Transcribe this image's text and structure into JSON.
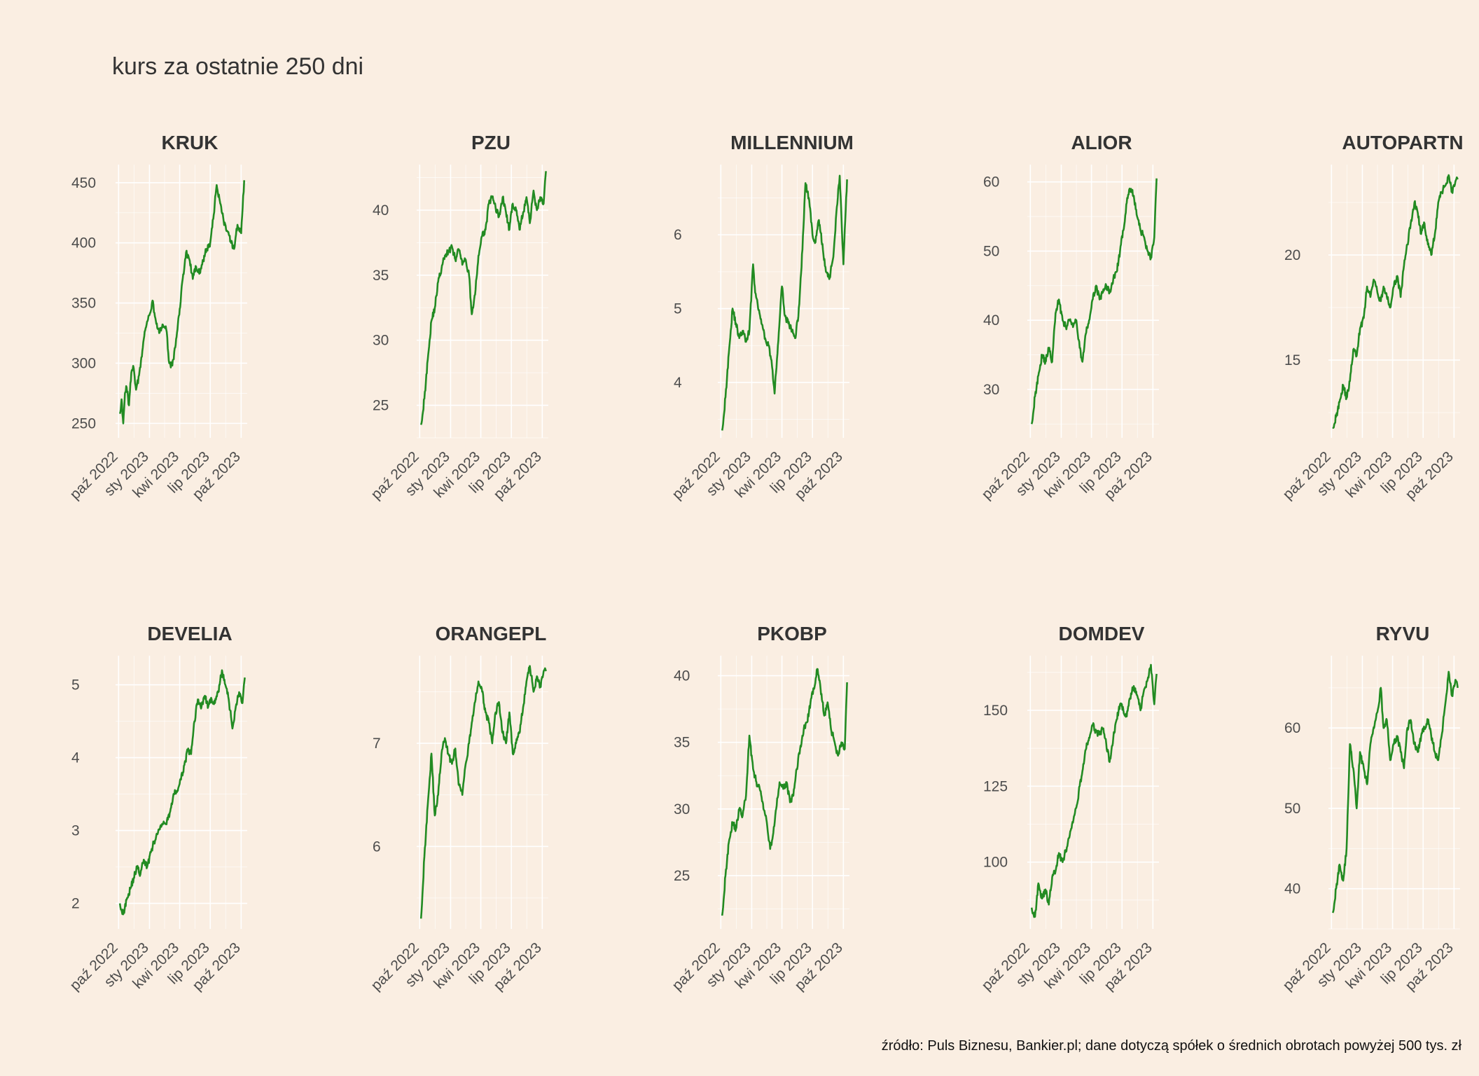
{
  "title": "kurs za ostatnie 250 dni",
  "source": "źródło: Puls Biznesu, Bankier.pl; dane dotyczą spółek o średnich obrotach powyżej 500 tys. zł",
  "colors": {
    "background": "#FAEEE2",
    "line": "#228B22",
    "grid": "#FFFFFF",
    "text": "#333333"
  },
  "chart_data": {
    "type": "line",
    "layout": "small-multiples-2x5",
    "x_tick_labels": [
      "paź 2022",
      "sty 2023",
      "kwi 2023",
      "lip 2023",
      "paź 2023"
    ],
    "x_ticks": [
      "2022-10-01",
      "2023-01-01",
      "2023-04-01",
      "2023-07-01",
      "2023-10-01"
    ],
    "xlim": [
      "2022-09-22",
      "2023-10-19"
    ],
    "grid": true,
    "legend": "none",
    "panels": [
      {
        "name": "KRUK",
        "y_ticks": [
          250,
          300,
          350,
          400,
          450
        ],
        "ylim": [
          238,
          465
        ],
        "series": {
          "dates": [
            "2022-10-05",
            "2022-10-10",
            "2022-10-15",
            "2022-10-20",
            "2022-10-25",
            "2022-11-01",
            "2022-11-08",
            "2022-11-15",
            "2022-11-22",
            "2022-12-01",
            "2022-12-08",
            "2022-12-15",
            "2022-12-22",
            "2023-01-01",
            "2023-01-10",
            "2023-01-20",
            "2023-01-30",
            "2023-02-10",
            "2023-02-20",
            "2023-03-01",
            "2023-03-10",
            "2023-03-20",
            "2023-04-01",
            "2023-04-10",
            "2023-04-20",
            "2023-05-01",
            "2023-05-10",
            "2023-05-20",
            "2023-06-01",
            "2023-06-10",
            "2023-06-20",
            "2023-07-01",
            "2023-07-10",
            "2023-07-20",
            "2023-08-01",
            "2023-08-10",
            "2023-08-20",
            "2023-09-01",
            "2023-09-10",
            "2023-09-20",
            "2023-10-01",
            "2023-10-10"
          ],
          "values": [
            258,
            270,
            250,
            275,
            280,
            265,
            292,
            296,
            278,
            290,
            305,
            320,
            330,
            340,
            352,
            335,
            325,
            332,
            328,
            300,
            298,
            315,
            345,
            370,
            392,
            385,
            370,
            380,
            375,
            385,
            395,
            400,
            420,
            448,
            432,
            418,
            410,
            400,
            395,
            415,
            408,
            452
          ]
        }
      },
      {
        "name": "PZU",
        "y_ticks": [
          25,
          30,
          35,
          40
        ],
        "ylim": [
          22.5,
          43.5
        ],
        "series": {
          "dates": [
            "2022-10-05",
            "2022-10-15",
            "2022-10-25",
            "2022-11-05",
            "2022-11-15",
            "2022-11-25",
            "2022-12-05",
            "2022-12-15",
            "2022-12-25",
            "2023-01-05",
            "2023-01-15",
            "2023-01-25",
            "2023-02-05",
            "2023-02-15",
            "2023-02-25",
            "2023-03-05",
            "2023-03-15",
            "2023-03-25",
            "2023-04-05",
            "2023-04-15",
            "2023-04-25",
            "2023-05-05",
            "2023-05-15",
            "2023-05-25",
            "2023-06-05",
            "2023-06-15",
            "2023-06-25",
            "2023-07-05",
            "2023-07-15",
            "2023-07-25",
            "2023-08-05",
            "2023-08-15",
            "2023-08-25",
            "2023-09-05",
            "2023-09-15",
            "2023-09-25",
            "2023-10-05",
            "2023-10-12"
          ],
          "values": [
            23.5,
            25.5,
            28.5,
            31.5,
            32.5,
            34.5,
            35.5,
            36.5,
            36.8,
            37.2,
            36.2,
            37.0,
            35.8,
            36.2,
            35.0,
            32.0,
            33.5,
            36.5,
            38.0,
            38.5,
            40.5,
            41.0,
            40.2,
            39.5,
            41.0,
            39.8,
            38.5,
            40.5,
            40.0,
            38.5,
            39.8,
            41.0,
            39.0,
            41.5,
            40.0,
            41.0,
            40.5,
            43.0
          ]
        }
      },
      {
        "name": "MILLENNIUM",
        "y_ticks": [
          4,
          5,
          6
        ],
        "ylim": [
          3.25,
          6.95
        ],
        "series": {
          "dates": [
            "2022-10-05",
            "2022-10-15",
            "2022-10-25",
            "2022-11-05",
            "2022-11-15",
            "2022-11-25",
            "2022-12-05",
            "2022-12-15",
            "2022-12-25",
            "2023-01-05",
            "2023-01-10",
            "2023-01-20",
            "2023-01-30",
            "2023-02-10",
            "2023-02-20",
            "2023-03-01",
            "2023-03-10",
            "2023-03-20",
            "2023-04-01",
            "2023-04-10",
            "2023-04-20",
            "2023-05-01",
            "2023-05-10",
            "2023-05-20",
            "2023-06-01",
            "2023-06-10",
            "2023-06-20",
            "2023-07-01",
            "2023-07-10",
            "2023-07-20",
            "2023-08-01",
            "2023-08-10",
            "2023-08-20",
            "2023-09-01",
            "2023-09-10",
            "2023-09-20",
            "2023-10-01",
            "2023-10-12"
          ],
          "values": [
            3.35,
            3.8,
            4.4,
            5.0,
            4.8,
            4.6,
            4.7,
            4.55,
            4.7,
            5.6,
            5.3,
            5.0,
            4.8,
            4.6,
            4.5,
            4.3,
            3.85,
            4.5,
            5.3,
            4.9,
            4.8,
            4.7,
            4.6,
            4.9,
            5.8,
            6.7,
            6.5,
            6.0,
            5.9,
            6.2,
            5.8,
            5.5,
            5.4,
            5.7,
            6.3,
            6.8,
            5.6,
            6.75
          ]
        }
      },
      {
        "name": "ALIOR",
        "y_ticks": [
          30,
          40,
          50,
          60
        ],
        "ylim": [
          23,
          62.5
        ],
        "series": {
          "dates": [
            "2022-10-05",
            "2022-10-15",
            "2022-10-25",
            "2022-11-05",
            "2022-11-15",
            "2022-11-25",
            "2022-12-05",
            "2022-12-15",
            "2022-12-25",
            "2023-01-05",
            "2023-01-15",
            "2023-01-25",
            "2023-02-05",
            "2023-02-15",
            "2023-02-25",
            "2023-03-05",
            "2023-03-15",
            "2023-03-25",
            "2023-04-05",
            "2023-04-15",
            "2023-04-25",
            "2023-05-05",
            "2023-05-15",
            "2023-05-25",
            "2023-06-05",
            "2023-06-15",
            "2023-06-25",
            "2023-07-05",
            "2023-07-15",
            "2023-07-25",
            "2023-08-05",
            "2023-08-15",
            "2023-08-25",
            "2023-09-05",
            "2023-09-15",
            "2023-09-25",
            "2023-10-05",
            "2023-10-12"
          ],
          "values": [
            25,
            29,
            32,
            35,
            34,
            36,
            34,
            41,
            43,
            40,
            39,
            40,
            39,
            40,
            36,
            34,
            38,
            40,
            43,
            45,
            43,
            44,
            45,
            44,
            46,
            47,
            50,
            53,
            57,
            59,
            58,
            55,
            53,
            52,
            50,
            49,
            52,
            60.5
          ]
        }
      },
      {
        "name": "AUTOPARTN",
        "y_ticks": [
          15,
          20
        ],
        "ylim": [
          11.3,
          24.3
        ],
        "series": {
          "dates": [
            "2022-10-05",
            "2022-10-15",
            "2022-10-25",
            "2022-11-05",
            "2022-11-15",
            "2022-11-25",
            "2022-12-05",
            "2022-12-15",
            "2022-12-25",
            "2023-01-05",
            "2023-01-15",
            "2023-01-25",
            "2023-02-05",
            "2023-02-15",
            "2023-02-25",
            "2023-03-05",
            "2023-03-15",
            "2023-03-25",
            "2023-04-05",
            "2023-04-15",
            "2023-04-25",
            "2023-05-05",
            "2023-05-15",
            "2023-05-25",
            "2023-06-05",
            "2023-06-15",
            "2023-06-25",
            "2023-07-05",
            "2023-07-15",
            "2023-07-25",
            "2023-08-05",
            "2023-08-15",
            "2023-08-25",
            "2023-09-05",
            "2023-09-15",
            "2023-09-25",
            "2023-10-05",
            "2023-10-12"
          ],
          "values": [
            11.8,
            12.3,
            13.0,
            13.8,
            13.2,
            14.0,
            15.5,
            15.2,
            16.5,
            17.0,
            18.5,
            18.0,
            18.8,
            18.2,
            17.8,
            18.5,
            18.0,
            17.5,
            18.5,
            19.0,
            18.0,
            19.5,
            20.5,
            21.5,
            22.5,
            22.0,
            21.0,
            21.5,
            20.5,
            20.0,
            21.0,
            22.5,
            23.0,
            23.3,
            23.8,
            23.0,
            23.5,
            23.6
          ]
        }
      },
      {
        "name": "DEVELIA",
        "y_ticks": [
          2,
          3,
          4,
          5
        ],
        "ylim": [
          1.65,
          5.4
        ],
        "series": {
          "dates": [
            "2022-10-05",
            "2022-10-15",
            "2022-10-25",
            "2022-11-05",
            "2022-11-15",
            "2022-11-25",
            "2022-12-05",
            "2022-12-15",
            "2022-12-25",
            "2023-01-05",
            "2023-01-15",
            "2023-01-25",
            "2023-02-05",
            "2023-02-15",
            "2023-02-25",
            "2023-03-05",
            "2023-03-15",
            "2023-03-25",
            "2023-04-05",
            "2023-04-15",
            "2023-04-25",
            "2023-05-05",
            "2023-05-15",
            "2023-05-25",
            "2023-06-05",
            "2023-06-15",
            "2023-06-25",
            "2023-07-05",
            "2023-07-15",
            "2023-07-25",
            "2023-08-05",
            "2023-08-15",
            "2023-08-25",
            "2023-09-05",
            "2023-09-15",
            "2023-09-25",
            "2023-10-05",
            "2023-10-12"
          ],
          "values": [
            2.0,
            1.85,
            2.05,
            2.2,
            2.35,
            2.5,
            2.4,
            2.6,
            2.5,
            2.7,
            2.85,
            2.95,
            3.05,
            3.1,
            3.15,
            3.3,
            3.5,
            3.55,
            3.7,
            3.9,
            4.1,
            4.05,
            4.5,
            4.8,
            4.7,
            4.85,
            4.7,
            4.8,
            4.75,
            4.9,
            5.2,
            5.0,
            4.8,
            4.4,
            4.7,
            4.9,
            4.75,
            5.1
          ]
        }
      },
      {
        "name": "ORANGEPL",
        "y_ticks": [
          6,
          7
        ],
        "ylim": [
          5.2,
          7.85
        ],
        "series": {
          "dates": [
            "2022-10-05",
            "2022-10-15",
            "2022-10-25",
            "2022-11-05",
            "2022-11-15",
            "2022-11-25",
            "2022-12-05",
            "2022-12-15",
            "2022-12-25",
            "2023-01-05",
            "2023-01-15",
            "2023-01-25",
            "2023-02-05",
            "2023-02-15",
            "2023-02-25",
            "2023-03-05",
            "2023-03-15",
            "2023-03-25",
            "2023-04-05",
            "2023-04-15",
            "2023-04-25",
            "2023-05-05",
            "2023-05-15",
            "2023-05-25",
            "2023-06-05",
            "2023-06-15",
            "2023-06-25",
            "2023-07-05",
            "2023-07-15",
            "2023-07-25",
            "2023-08-05",
            "2023-08-15",
            "2023-08-25",
            "2023-09-05",
            "2023-09-15",
            "2023-09-25",
            "2023-10-05",
            "2023-10-12"
          ],
          "values": [
            5.3,
            5.9,
            6.4,
            6.9,
            6.3,
            6.5,
            6.9,
            7.05,
            6.9,
            6.8,
            6.95,
            6.6,
            6.5,
            6.8,
            7.0,
            7.2,
            7.4,
            7.6,
            7.5,
            7.3,
            7.2,
            7.0,
            7.3,
            7.4,
            7.1,
            7.0,
            7.3,
            6.9,
            7.0,
            7.1,
            7.35,
            7.6,
            7.75,
            7.5,
            7.65,
            7.55,
            7.7,
            7.7
          ]
        }
      },
      {
        "name": "PKOBP",
        "y_ticks": [
          25,
          30,
          35,
          40
        ],
        "ylim": [
          21,
          41.5
        ],
        "series": {
          "dates": [
            "2022-10-05",
            "2022-10-15",
            "2022-10-25",
            "2022-11-05",
            "2022-11-15",
            "2022-11-25",
            "2022-12-05",
            "2022-12-15",
            "2022-12-25",
            "2023-01-05",
            "2023-01-15",
            "2023-01-25",
            "2023-02-05",
            "2023-02-15",
            "2023-02-25",
            "2023-03-05",
            "2023-03-15",
            "2023-03-25",
            "2023-04-05",
            "2023-04-15",
            "2023-04-25",
            "2023-05-05",
            "2023-05-15",
            "2023-05-25",
            "2023-06-05",
            "2023-06-15",
            "2023-06-25",
            "2023-07-05",
            "2023-07-15",
            "2023-07-25",
            "2023-08-05",
            "2023-08-15",
            "2023-08-25",
            "2023-09-05",
            "2023-09-15",
            "2023-09-25",
            "2023-10-05",
            "2023-10-12"
          ],
          "values": [
            22,
            25,
            27.5,
            29,
            28.5,
            30,
            29.5,
            31,
            35.5,
            33,
            32,
            31.5,
            30,
            29,
            27,
            28,
            30,
            32,
            31.5,
            32,
            30.5,
            31,
            33,
            34.5,
            36,
            36.5,
            38,
            39,
            40.5,
            39,
            37,
            38,
            36,
            35,
            34,
            35,
            34.5,
            39.5
          ]
        }
      },
      {
        "name": "DOMDEV",
        "y_ticks": [
          100,
          125,
          150
        ],
        "ylim": [
          78,
          168
        ],
        "series": {
          "dates": [
            "2022-10-05",
            "2022-10-15",
            "2022-10-25",
            "2022-11-05",
            "2022-11-15",
            "2022-11-25",
            "2022-12-05",
            "2022-12-15",
            "2022-12-25",
            "2023-01-05",
            "2023-01-15",
            "2023-01-25",
            "2023-02-05",
            "2023-02-15",
            "2023-02-25",
            "2023-03-05",
            "2023-03-15",
            "2023-03-25",
            "2023-04-05",
            "2023-04-15",
            "2023-04-25",
            "2023-05-05",
            "2023-05-15",
            "2023-05-25",
            "2023-06-05",
            "2023-06-15",
            "2023-06-25",
            "2023-07-05",
            "2023-07-15",
            "2023-07-25",
            "2023-08-05",
            "2023-08-15",
            "2023-08-25",
            "2023-09-05",
            "2023-09-15",
            "2023-09-25",
            "2023-10-05",
            "2023-10-12"
          ],
          "values": [
            85,
            82,
            93,
            88,
            91,
            86,
            95,
            97,
            103,
            100,
            104,
            108,
            113,
            118,
            125,
            130,
            137,
            141,
            145,
            143,
            142,
            144,
            139,
            133,
            141,
            147,
            152,
            150,
            148,
            154,
            158,
            155,
            150,
            157,
            160,
            165,
            152,
            162
          ]
        }
      },
      {
        "name": "RYVU",
        "y_ticks": [
          40,
          50,
          60
        ],
        "ylim": [
          35,
          69
        ],
        "series": {
          "dates": [
            "2022-10-05",
            "2022-10-15",
            "2022-10-25",
            "2022-11-05",
            "2022-11-15",
            "2022-11-25",
            "2022-12-05",
            "2022-12-15",
            "2022-12-25",
            "2023-01-05",
            "2023-01-15",
            "2023-01-25",
            "2023-02-05",
            "2023-02-15",
            "2023-02-25",
            "2023-03-05",
            "2023-03-15",
            "2023-03-25",
            "2023-04-05",
            "2023-04-15",
            "2023-04-25",
            "2023-05-05",
            "2023-05-15",
            "2023-05-25",
            "2023-06-05",
            "2023-06-15",
            "2023-06-25",
            "2023-07-05",
            "2023-07-15",
            "2023-07-25",
            "2023-08-05",
            "2023-08-15",
            "2023-08-25",
            "2023-09-05",
            "2023-09-15",
            "2023-09-25",
            "2023-10-05",
            "2023-10-12"
          ],
          "values": [
            37,
            40,
            43,
            41,
            45,
            58,
            55,
            50,
            57,
            55,
            53,
            58,
            60,
            62,
            65,
            60,
            61,
            56,
            58,
            59,
            57,
            55,
            60,
            61,
            58,
            57,
            59,
            60,
            61,
            59,
            57,
            56,
            59,
            63,
            67,
            64,
            66,
            65
          ]
        }
      }
    ]
  }
}
